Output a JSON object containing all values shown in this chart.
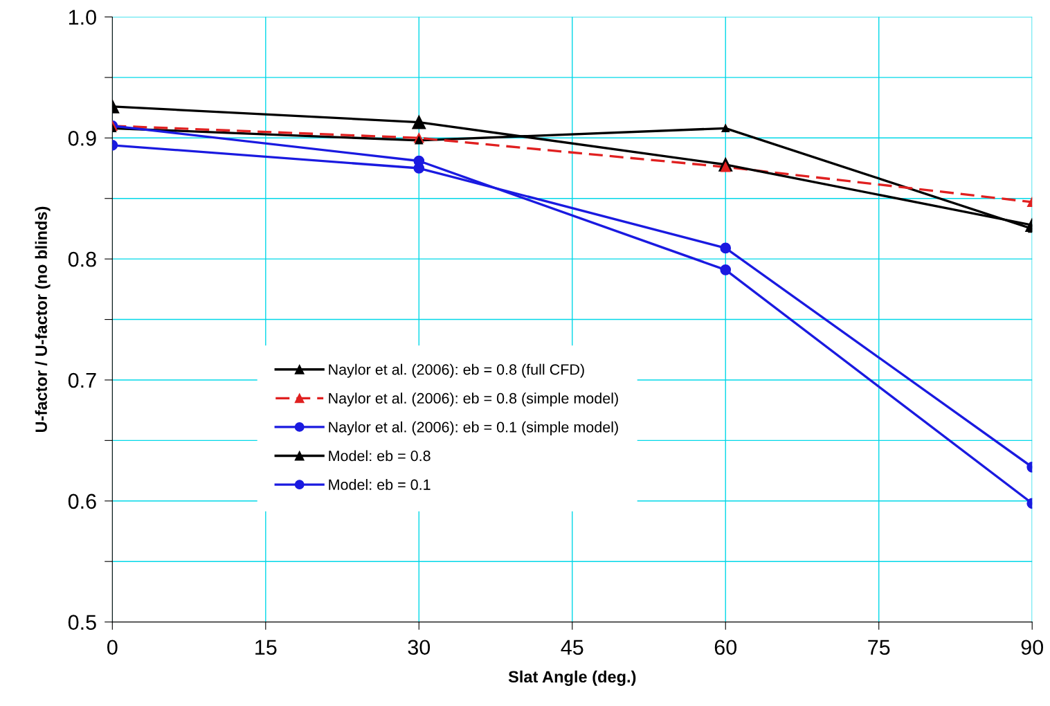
{
  "chart_data": {
    "type": "line",
    "xlabel": "Slat Angle (deg.)",
    "ylabel": "U-factor / U-factor (no blinds)",
    "x": [
      0,
      30,
      60,
      90
    ],
    "xlim": [
      0,
      90
    ],
    "xticks": [
      0,
      15,
      30,
      45,
      60,
      75,
      90
    ],
    "ylim": [
      0.5,
      1.0
    ],
    "yticks": [
      {
        "value": 0.5,
        "label": "0.5"
      },
      {
        "value": 0.55,
        "label": null
      },
      {
        "value": 0.6,
        "label": "0.6"
      },
      {
        "value": 0.65,
        "label": null
      },
      {
        "value": 0.7,
        "label": "0.7"
      },
      {
        "value": 0.75,
        "label": null
      },
      {
        "value": 0.8,
        "label": "0.8"
      },
      {
        "value": 0.85,
        "label": null
      },
      {
        "value": 0.9,
        "label": "0.9"
      },
      {
        "value": 0.95,
        "label": null
      },
      {
        "value": 1.0,
        "label": "1.0"
      }
    ],
    "grid": true,
    "legend": "center left",
    "series": [
      {
        "name": "Naylor et al. (2006): eb = 0.8 (full CFD)",
        "color": "#000000",
        "values": [
          0.908,
          0.898,
          0.908,
          0.825
        ],
        "marker": "triangle",
        "line_style": "solid"
      },
      {
        "name": "Naylor et al. (2006): eb = 0.8 (simple model)",
        "color": "#e02020",
        "values": [
          0.91,
          0.9,
          0.876,
          0.847
        ],
        "marker": "triangle",
        "line_style": "dashed"
      },
      {
        "name": "Naylor et al. (2006): eb = 0.1 (simple model)",
        "color": "#1a1ae0",
        "values": [
          0.894,
          0.875,
          0.809,
          0.628
        ],
        "marker": "circle",
        "line_style": "solid"
      },
      {
        "name": "Model: eb = 0.8",
        "color": "#000000",
        "values": [
          0.926,
          0.913,
          0.878,
          0.828
        ],
        "marker": "triangle",
        "line_style": "solid"
      },
      {
        "name": "Model: eb = 0.1",
        "color": "#1a1ae0",
        "values": [
          0.91,
          0.881,
          0.791,
          0.598
        ],
        "marker": "circle",
        "line_style": "solid"
      }
    ]
  }
}
